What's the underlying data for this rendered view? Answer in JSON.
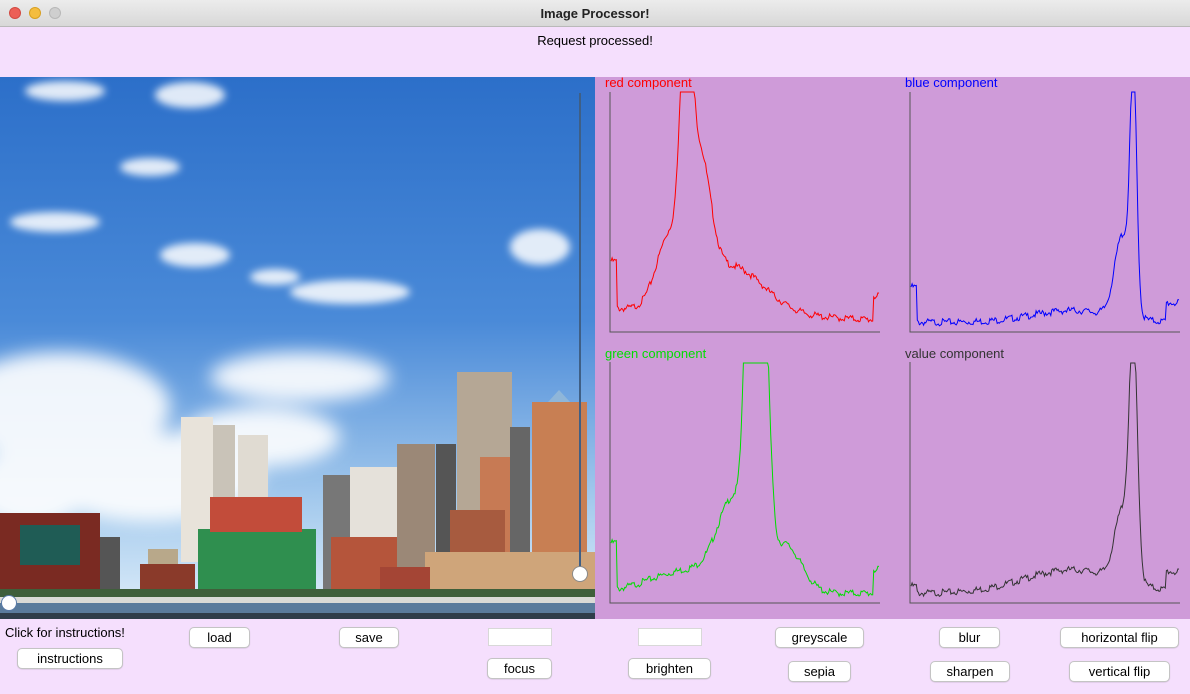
{
  "window": {
    "title": "Image Processor!"
  },
  "status": {
    "message": "Request processed!"
  },
  "histograms": {
    "red_label": "red component",
    "blue_label": "blue component",
    "green_label": "green component",
    "value_label": "value component",
    "colors": {
      "red": "#ff0000",
      "blue": "#0000ff",
      "green": "#00dd00",
      "value": "#333333"
    }
  },
  "controls": {
    "instructions_prompt": "Click for instructions!",
    "instructions_button": "instructions",
    "load_button": "load",
    "save_button": "save",
    "focus_field_value": "",
    "focus_button": "focus",
    "brighten_field_value": "",
    "brighten_button": "brighten",
    "greyscale_button": "greyscale",
    "sepia_button": "sepia",
    "blur_button": "blur",
    "sharpen_button": "sharpen",
    "horizontal_flip_button": "horizontal flip",
    "vertical_flip_button": "vertical flip"
  }
}
